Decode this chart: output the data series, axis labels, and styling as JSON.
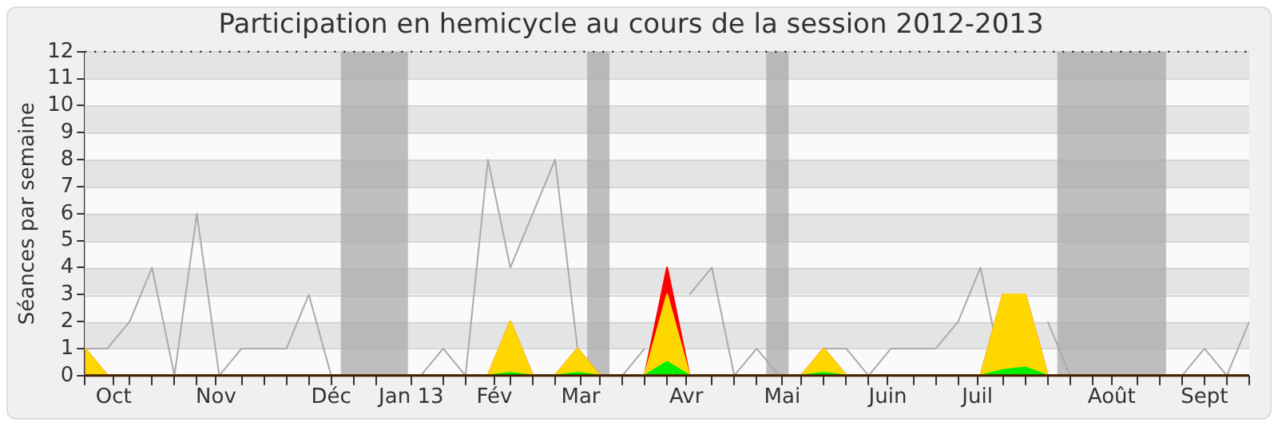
{
  "chart_data": {
    "type": "area",
    "title": "Participation en hemicycle au cours de la session 2012-2013",
    "ylabel": "Séances par semaine",
    "x": [
      "2012-10-01",
      "2012-10-08",
      "2012-10-15",
      "2012-10-22",
      "2012-10-29",
      "2012-11-05",
      "2012-11-12",
      "2012-11-19",
      "2012-11-26",
      "2012-12-03",
      "2012-12-10",
      "2012-12-17",
      "2012-12-24",
      "2012-12-31",
      "2013-01-07",
      "2013-01-14",
      "2013-01-21",
      "2013-01-28",
      "2013-02-04",
      "2013-02-11",
      "2013-02-18",
      "2013-02-25",
      "2013-03-04",
      "2013-03-11",
      "2013-03-18",
      "2013-03-25",
      "2013-04-01",
      "2013-04-08",
      "2013-04-15",
      "2013-04-22",
      "2013-04-29",
      "2013-05-06",
      "2013-05-13",
      "2013-05-20",
      "2013-05-27",
      "2013-06-03",
      "2013-06-10",
      "2013-06-17",
      "2013-06-24",
      "2013-07-01",
      "2013-07-08",
      "2013-07-15",
      "2013-07-22",
      "2013-07-29",
      "2013-08-05",
      "2013-08-12",
      "2013-08-19",
      "2013-08-26",
      "2013-09-02",
      "2013-09-09",
      "2013-09-16",
      "2013-09-23",
      "2013-09-30"
    ],
    "series": [
      {
        "type": "line",
        "color": "#aaaaaa",
        "values": [
          1,
          1,
          2,
          4,
          0,
          6,
          0,
          1,
          1,
          1,
          3,
          0,
          0,
          0,
          0,
          0,
          1,
          0,
          8,
          4,
          6,
          8,
          1,
          0,
          0,
          1,
          null,
          3,
          4,
          0,
          1,
          0,
          0,
          1,
          1,
          0,
          1,
          1,
          1,
          2,
          4,
          0,
          null,
          2,
          0,
          0,
          0,
          0,
          0,
          0,
          1,
          0,
          2
        ]
      },
      {
        "type": "area",
        "color": "#ff0000",
        "values": [
          1,
          0,
          0,
          0,
          0,
          0,
          0,
          0,
          0,
          0,
          0,
          0,
          0,
          0,
          0,
          0,
          0,
          0,
          0,
          2,
          0,
          0,
          1,
          0,
          0,
          0,
          4,
          0,
          0,
          0,
          0,
          0,
          0,
          1,
          0,
          0,
          0,
          0,
          0,
          0,
          0,
          3,
          3,
          0,
          0,
          0,
          0,
          0,
          0,
          0,
          0,
          0,
          0
        ]
      },
      {
        "type": "area",
        "color": "#0000ff",
        "values": [
          0.9,
          0,
          0,
          0,
          0,
          0,
          0,
          0,
          0,
          0,
          0,
          0,
          0,
          0,
          0,
          0,
          0,
          0,
          0,
          0,
          0,
          0,
          0,
          0,
          0,
          0,
          0,
          0,
          0,
          0,
          0,
          0,
          0,
          0,
          0,
          0,
          0,
          0,
          0,
          0,
          0,
          0,
          0,
          0,
          0,
          0,
          0,
          0,
          0,
          0,
          0,
          0,
          0
        ]
      },
      {
        "type": "area",
        "color": "#ffd700",
        "values": [
          1,
          0,
          0,
          0,
          0,
          0,
          0,
          0,
          0,
          0,
          0,
          0,
          0,
          0,
          0,
          0,
          0,
          0,
          0,
          2,
          0,
          0,
          1,
          0,
          0,
          0,
          3,
          0,
          0,
          0,
          0,
          0,
          0,
          1,
          0,
          0,
          0,
          0,
          0,
          0,
          0,
          3,
          3,
          0,
          0,
          0,
          0,
          0,
          0,
          0,
          0,
          0,
          0
        ]
      },
      {
        "type": "area",
        "color": "#00ee00",
        "values": [
          0,
          0,
          0,
          0,
          0,
          0,
          0,
          0,
          0,
          0,
          0,
          0,
          0,
          0,
          0,
          0,
          0,
          0,
          0,
          0.1,
          0,
          0,
          0.1,
          0,
          0,
          0,
          0.5,
          0,
          0,
          0,
          0,
          0,
          0,
          0.1,
          0,
          0,
          0,
          0,
          0,
          0,
          0,
          0.2,
          0.3,
          0,
          0,
          0,
          0,
          0,
          0,
          0,
          0,
          0,
          0
        ]
      }
    ],
    "xlim": [
      "2012-10-01",
      "2013-09-30"
    ],
    "xticks": [
      {
        "value": "2012-10-01",
        "label": null
      },
      {
        "value": "2012-10-10",
        "label": "Oct"
      },
      {
        "value": "2012-10-15",
        "label": null
      },
      {
        "value": "2012-10-22",
        "label": null
      },
      {
        "value": "2012-10-29",
        "label": null
      },
      {
        "value": "2012-11-05",
        "label": null
      },
      {
        "value": "2012-11-11",
        "label": "Nov"
      },
      {
        "value": "2012-11-19",
        "label": null
      },
      {
        "value": "2012-11-26",
        "label": null
      },
      {
        "value": "2012-12-03",
        "label": null
      },
      {
        "value": "2012-12-10",
        "label": null
      },
      {
        "value": "2012-12-17",
        "label": "Déc"
      },
      {
        "value": "2012-12-24",
        "label": null
      },
      {
        "value": "2012-12-31",
        "label": null
      },
      {
        "value": "2013-01-11",
        "label": "Jan 13"
      },
      {
        "value": "2013-01-21",
        "label": null
      },
      {
        "value": "2013-01-28",
        "label": null
      },
      {
        "value": "2013-02-06",
        "label": "Fév"
      },
      {
        "value": "2013-02-11",
        "label": null
      },
      {
        "value": "2013-02-18",
        "label": null
      },
      {
        "value": "2013-02-25",
        "label": null
      },
      {
        "value": "2013-03-05",
        "label": "Mar"
      },
      {
        "value": "2013-03-11",
        "label": null
      },
      {
        "value": "2013-03-18",
        "label": null
      },
      {
        "value": "2013-03-25",
        "label": null
      },
      {
        "value": "2013-04-01",
        "label": null
      },
      {
        "value": "2013-04-07",
        "label": "Avr"
      },
      {
        "value": "2013-04-15",
        "label": null
      },
      {
        "value": "2013-04-22",
        "label": null
      },
      {
        "value": "2013-04-29",
        "label": null
      },
      {
        "value": "2013-05-07",
        "label": "Mai"
      },
      {
        "value": "2013-05-13",
        "label": null
      },
      {
        "value": "2013-05-20",
        "label": null
      },
      {
        "value": "2013-05-27",
        "label": null
      },
      {
        "value": "2013-06-03",
        "label": null
      },
      {
        "value": "2013-06-09",
        "label": "Juin"
      },
      {
        "value": "2013-06-17",
        "label": null
      },
      {
        "value": "2013-06-24",
        "label": null
      },
      {
        "value": "2013-07-01",
        "label": null
      },
      {
        "value": "2013-07-07",
        "label": "Juil"
      },
      {
        "value": "2013-07-15",
        "label": null
      },
      {
        "value": "2013-07-22",
        "label": null
      },
      {
        "value": "2013-07-29",
        "label": null
      },
      {
        "value": "2013-08-05",
        "label": null
      },
      {
        "value": "2013-08-12",
        "label": null
      },
      {
        "value": "2013-08-18",
        "label": "Août"
      },
      {
        "value": "2013-08-26",
        "label": null
      },
      {
        "value": "2013-09-02",
        "label": null
      },
      {
        "value": "2013-09-09",
        "label": null
      },
      {
        "value": "2013-09-16",
        "label": "Sept"
      },
      {
        "value": "2013-09-23",
        "label": null
      },
      {
        "value": "2013-09-30",
        "label": null
      }
    ],
    "ylim": [
      0,
      12
    ],
    "yticks": [
      0,
      1,
      2,
      3,
      4,
      5,
      6,
      7,
      8,
      9,
      10,
      11,
      12
    ],
    "grid": "y",
    "legend": false,
    "bands": [
      {
        "axis": "x",
        "from": "2012-12-20",
        "to": "2013-01-10",
        "color": "#aaaaaa"
      },
      {
        "axis": "x",
        "from": "2013-03-07",
        "to": "2013-03-14",
        "color": "#aaaaaa"
      },
      {
        "axis": "x",
        "from": "2013-05-02",
        "to": "2013-05-09",
        "color": "#aaaaaa"
      },
      {
        "axis": "x",
        "from": "2013-08-01",
        "to": "2013-09-04",
        "color": "#aaaaaa"
      }
    ]
  }
}
